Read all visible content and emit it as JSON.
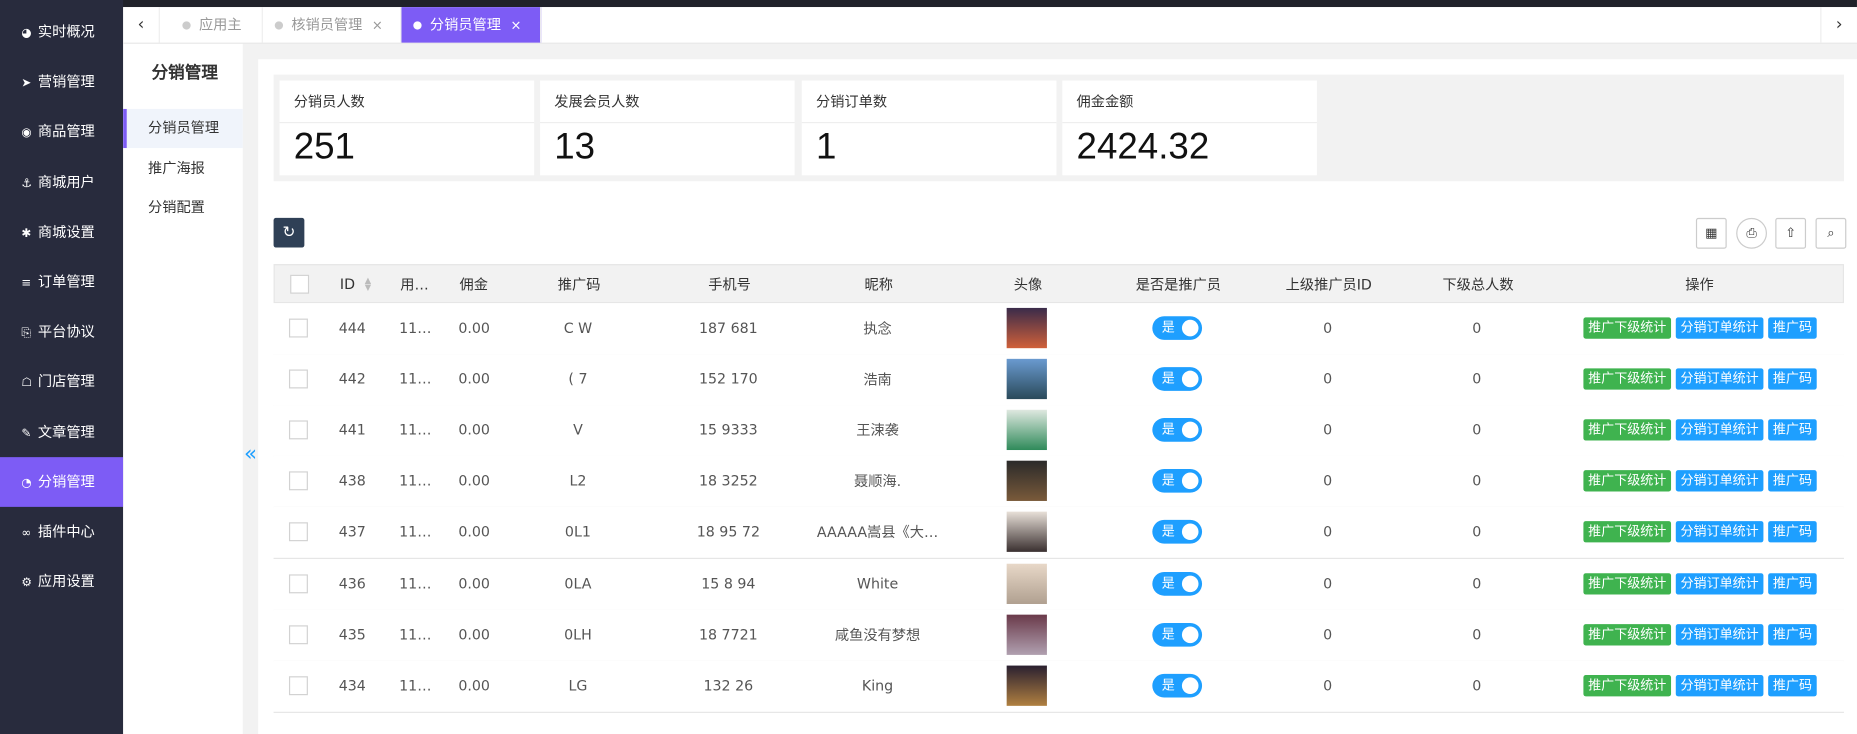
{
  "sidebar": {
    "items": [
      "实时概况",
      "营销管理",
      "商品管理",
      "商城用户",
      "商城设置",
      "订单管理",
      "平台协议",
      "门店管理",
      "文章管理",
      "分销管理",
      "插件中心",
      "应用设置"
    ],
    "active": 9
  },
  "tabs": {
    "items": [
      "应用主页",
      "核销员管理",
      "分销员管理"
    ],
    "active": 2
  },
  "submenu": {
    "title": "分销管理",
    "items": [
      "分销员管理",
      "推广海报",
      "分销配置"
    ],
    "active": 0
  },
  "stats": [
    {
      "label": "分销员人数",
      "value": "251"
    },
    {
      "label": "发展会员人数",
      "value": "13"
    },
    {
      "label": "分销订单数",
      "value": "1"
    },
    {
      "label": "佣金金额",
      "value": "2424.32"
    }
  ],
  "table": {
    "headers": [
      "ID",
      "用…",
      "佣金",
      "推广码",
      "手机号",
      "昵称",
      "头像",
      "是否是推广员",
      "上级推广员ID",
      "下级总人数",
      "操作"
    ],
    "toggle_label": "是",
    "actions": [
      "推广下级统计",
      "分销订单统计",
      "推广码"
    ],
    "rows": [
      [
        "444",
        "11…",
        "0.00",
        "C W",
        "187 681",
        "执念",
        "0",
        "0"
      ],
      [
        "442",
        "11…",
        "0.00",
        "( 7",
        "152 170",
        "浩南",
        "0",
        "0"
      ],
      [
        "441",
        "11…",
        "0.00",
        "V",
        "15 9333",
        "王涑袭",
        "0",
        "0"
      ],
      [
        "438",
        "11…",
        "0.00",
        "L2",
        "18 3252",
        "聂顺海.",
        "0",
        "0"
      ],
      [
        "437",
        "11…",
        "0.00",
        "0L1",
        "18 95 72",
        "AAAAA嵩县《大…",
        "0",
        "0"
      ],
      [
        "436",
        "11…",
        "0.00",
        "0LA",
        "15 8 94",
        "White",
        "0",
        "0"
      ],
      [
        "435",
        "11…",
        "0.00",
        "0LH",
        "18 7721",
        "咸鱼没有梦想",
        "0",
        "0"
      ],
      [
        "434",
        "11…",
        "0.00",
        "LG",
        "132 26",
        "King",
        "0",
        "0"
      ]
    ]
  }
}
